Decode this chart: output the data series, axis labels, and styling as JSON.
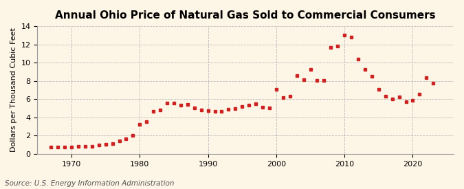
{
  "title": "Annual Ohio Price of Natural Gas Sold to Commercial Consumers",
  "ylabel": "Dollars per Thousand Cubic Feet",
  "source": "Source: U.S. Energy Information Administration",
  "background_color": "#fdf5e6",
  "plot_background_color": "#fdf5e6",
  "marker_color": "#cc2222",
  "years": [
    1967,
    1968,
    1969,
    1970,
    1971,
    1972,
    1973,
    1974,
    1975,
    1976,
    1977,
    1978,
    1979,
    1980,
    1981,
    1982,
    1983,
    1984,
    1985,
    1986,
    1987,
    1988,
    1989,
    1990,
    1991,
    1992,
    1993,
    1994,
    1995,
    1996,
    1997,
    1998,
    1999,
    2000,
    2001,
    2002,
    2003,
    2004,
    2005,
    2006,
    2007,
    2008,
    2009,
    2010,
    2011,
    2012,
    2013,
    2014,
    2015,
    2016,
    2017,
    2018,
    2019,
    2020,
    2021,
    2022,
    2023
  ],
  "values": [
    0.72,
    0.74,
    0.76,
    0.76,
    0.78,
    0.8,
    0.84,
    0.95,
    1.05,
    1.15,
    1.4,
    1.62,
    2.05,
    3.25,
    3.55,
    4.65,
    4.8,
    5.6,
    5.6,
    5.35,
    5.4,
    5.05,
    4.8,
    4.7,
    4.65,
    4.65,
    4.85,
    4.95,
    5.15,
    5.3,
    5.5,
    5.1,
    5.05,
    7.05,
    6.2,
    6.35,
    8.55,
    8.15,
    9.25,
    8.05,
    8.05,
    11.7,
    11.8,
    13.0,
    12.8,
    10.4,
    9.25,
    8.5,
    7.1,
    6.3,
    6.0,
    6.25,
    5.75,
    5.9,
    6.55,
    8.35,
    7.75
  ],
  "xlim": [
    1965,
    2026
  ],
  "ylim": [
    0,
    14
  ],
  "xticks": [
    1970,
    1980,
    1990,
    2000,
    2010,
    2020
  ],
  "yticks": [
    0,
    2,
    4,
    6,
    8,
    10,
    12,
    14
  ],
  "title_fontsize": 11,
  "label_fontsize": 8,
  "tick_fontsize": 8,
  "source_fontsize": 7.5
}
